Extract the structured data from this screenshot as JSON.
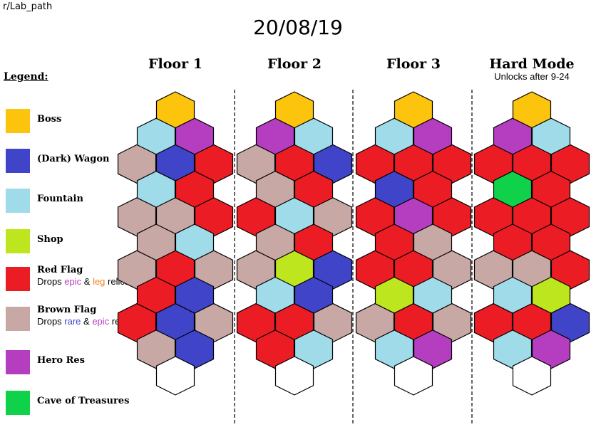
{
  "source_label": "r/Lab_path",
  "date": "20/08/19",
  "legend_title": "Legend:",
  "legend": [
    {
      "key": "boss",
      "label": "Boss",
      "color": "#fdc40d"
    },
    {
      "key": "wagon",
      "label": "(Dark) Wagon",
      "color": "#3f44c8"
    },
    {
      "key": "fountain",
      "label": "Fountain",
      "color": "#9fdbe9"
    },
    {
      "key": "shop",
      "label": "Shop",
      "color": "#bde61f"
    },
    {
      "key": "red",
      "label": "Red Flag",
      "color": "#ec1c24",
      "desc_parts": [
        {
          "text": "Drops "
        },
        {
          "text": "epic",
          "color": "#b43dc0"
        },
        {
          "text": " & "
        },
        {
          "text": "leg",
          "color": "#f2801e"
        },
        {
          "text": " relics"
        }
      ]
    },
    {
      "key": "brown",
      "label": "Brown Flag",
      "color": "#c8a8a5",
      "desc_parts": [
        {
          "text": "Drops "
        },
        {
          "text": "rare",
          "color": "#3f44c8"
        },
        {
          "text": " & "
        },
        {
          "text": "epic",
          "color": "#b43dc0"
        },
        {
          "text": " relics"
        }
      ]
    },
    {
      "key": "hero",
      "label": "Hero Res",
      "color": "#b43dc0"
    },
    {
      "key": "cave",
      "label": "Cave of Treasures",
      "color": "#10d24a"
    }
  ],
  "empty_color": "#ffffff",
  "floors": [
    {
      "title": "Floor 1",
      "subtitle": "",
      "rows": [
        [
          "boss"
        ],
        [
          "fountain",
          "hero"
        ],
        [
          "brown",
          "wagon",
          "red"
        ],
        [
          "fountain",
          "red"
        ],
        [
          "brown",
          "brown",
          "red"
        ],
        [
          "brown",
          "fountain"
        ],
        [
          "brown",
          "red",
          "brown"
        ],
        [
          "red",
          "wagon"
        ],
        [
          "red",
          "wagon",
          "brown"
        ],
        [
          "brown",
          "wagon"
        ],
        [
          "empty"
        ]
      ]
    },
    {
      "title": "Floor 2",
      "subtitle": "",
      "rows": [
        [
          "boss"
        ],
        [
          "hero",
          "fountain"
        ],
        [
          "brown",
          "red",
          "wagon"
        ],
        [
          "brown",
          "red"
        ],
        [
          "red",
          "fountain",
          "brown"
        ],
        [
          "brown",
          "red"
        ],
        [
          "brown",
          "shop",
          "wagon"
        ],
        [
          "fountain",
          "wagon"
        ],
        [
          "red",
          "red",
          "brown"
        ],
        [
          "red",
          "fountain"
        ],
        [
          "empty"
        ]
      ]
    },
    {
      "title": "Floor 3",
      "subtitle": "",
      "rows": [
        [
          "boss"
        ],
        [
          "fountain",
          "hero"
        ],
        [
          "red",
          "red",
          "red"
        ],
        [
          "wagon",
          "red"
        ],
        [
          "red",
          "hero",
          "red"
        ],
        [
          "red",
          "brown"
        ],
        [
          "red",
          "red",
          "brown"
        ],
        [
          "shop",
          "fountain"
        ],
        [
          "brown",
          "red",
          "brown"
        ],
        [
          "fountain",
          "hero"
        ],
        [
          "empty"
        ]
      ]
    },
    {
      "title": "Hard Mode",
      "subtitle": "Unlocks after 9-24",
      "rows": [
        [
          "boss"
        ],
        [
          "hero",
          "fountain"
        ],
        [
          "red",
          "red",
          "red"
        ],
        [
          "cave",
          "red"
        ],
        [
          "red",
          "red",
          "red"
        ],
        [
          "red",
          "red"
        ],
        [
          "brown",
          "brown",
          "red"
        ],
        [
          "fountain",
          "shop"
        ],
        [
          "red",
          "red",
          "wagon"
        ],
        [
          "fountain",
          "hero"
        ],
        [
          "empty"
        ]
      ]
    }
  ]
}
